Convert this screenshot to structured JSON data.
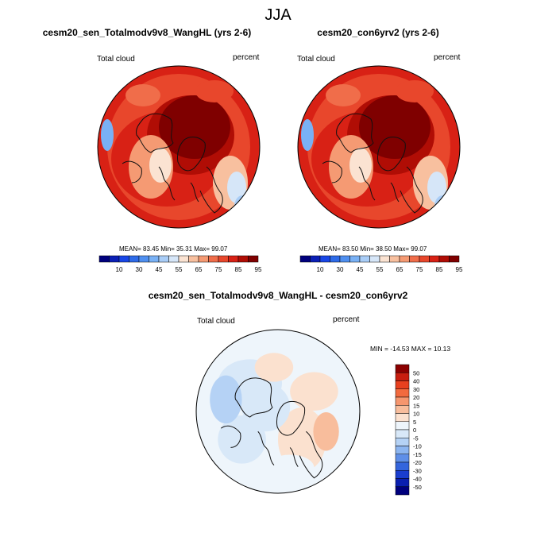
{
  "main_title": "JJA",
  "panels": [
    {
      "title": "cesm20_sen_Totalmodv9v8_WangHL (yrs 2-6)",
      "left_label": "Total cloud",
      "right_label": "percent",
      "stats": "MEAN= 83.45  Min= 35.31  Max= 99.07"
    },
    {
      "title": "cesm20_con6yrv2 (yrs 2-6)",
      "left_label": "Total cloud",
      "right_label": "percent",
      "stats": "MEAN= 83.50  Min= 38.50  Max= 99.07"
    },
    {
      "title": "cesm20_sen_Totalmodv9v8_WangHL - cesm20_con6yrv2",
      "left_label": "Total cloud",
      "right_label": "percent",
      "stats": "MIN = -14.53 MAX =  10.13"
    }
  ],
  "chart_data": [
    {
      "type": "heatmap",
      "projection": "north-polar-stereographic",
      "title": "cesm20_sen_Totalmodv9v8_WangHL (yrs 2-6)",
      "variable": "Total cloud",
      "units": "percent",
      "mean": 83.45,
      "min": 35.31,
      "max": 99.07,
      "colorbar_levels": [
        10,
        20,
        30,
        40,
        45,
        50,
        55,
        60,
        65,
        70,
        75,
        80,
        85,
        90,
        95
      ],
      "colorbar_labels": [
        "10",
        "30",
        "45",
        "55",
        "65",
        "75",
        "85",
        "95"
      ],
      "colors": [
        "#00007d",
        "#0b1fb5",
        "#1846e6",
        "#2e6be8",
        "#4f8ff0",
        "#79b1f5",
        "#a9cdf7",
        "#d6e6f8",
        "#fbe3d2",
        "#f8c09f",
        "#f59a73",
        "#f06d4a",
        "#e8472c",
        "#d82115",
        "#b00d05",
        "#7f0000"
      ]
    },
    {
      "type": "heatmap",
      "projection": "north-polar-stereographic",
      "title": "cesm20_con6yrv2 (yrs 2-6)",
      "variable": "Total cloud",
      "units": "percent",
      "mean": 83.5,
      "min": 38.5,
      "max": 99.07,
      "colorbar_levels": [
        10,
        20,
        30,
        40,
        45,
        50,
        55,
        60,
        65,
        70,
        75,
        80,
        85,
        90,
        95
      ],
      "colorbar_labels": [
        "10",
        "30",
        "45",
        "55",
        "65",
        "75",
        "85",
        "95"
      ],
      "colors": [
        "#00007d",
        "#0b1fb5",
        "#1846e6",
        "#2e6be8",
        "#4f8ff0",
        "#79b1f5",
        "#a9cdf7",
        "#d6e6f8",
        "#fbe3d2",
        "#f8c09f",
        "#f59a73",
        "#f06d4a",
        "#e8472c",
        "#d82115",
        "#b00d05",
        "#7f0000"
      ]
    },
    {
      "type": "heatmap",
      "projection": "north-polar-stereographic",
      "title": "cesm20_sen_Totalmodv9v8_WangHL - cesm20_con6yrv2",
      "variable": "Total cloud",
      "units": "percent",
      "min": -14.53,
      "max": 10.13,
      "colorbar_labels": [
        "50",
        "40",
        "30",
        "20",
        "15",
        "10",
        "5",
        "0",
        "-5",
        "-10",
        "-15",
        "-20",
        "-30",
        "-40",
        "-50"
      ],
      "colors": [
        "#8b0000",
        "#c81e0f",
        "#e8401f",
        "#f26a3e",
        "#f6966e",
        "#f8bd9c",
        "#fbe1cf",
        "#eef5fb",
        "#d8e8f8",
        "#b5d2f5",
        "#8cb5f0",
        "#5f8fe8",
        "#3465dc",
        "#1a3ecf",
        "#0a1fb0",
        "#00007d"
      ]
    }
  ]
}
